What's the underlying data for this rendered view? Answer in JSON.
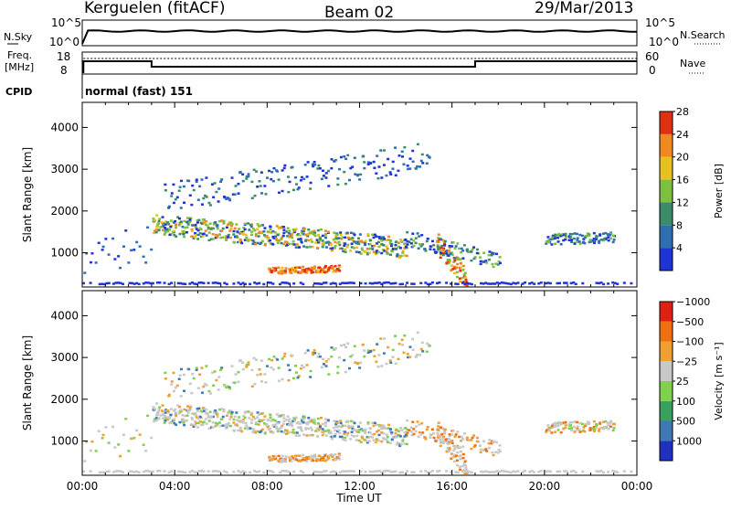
{
  "header": {
    "station": "Kerguelen (fitACF)",
    "beam": "Beam 02",
    "date": "29/Mar/2013"
  },
  "side_labels": {
    "nsky": "N.Sky",
    "nsearch": "N.Search",
    "freq_line1": "Freq.",
    "freq_line2": "[MHz]",
    "nave": "Nave",
    "cpid": "CPID",
    "cpid_value": "normal (fast) 151"
  },
  "strip_ticks": {
    "noise_left": [
      "10^5",
      "10^0"
    ],
    "noise_right": [
      "10^5",
      "10^0"
    ],
    "freq_left": [
      "18",
      "8"
    ],
    "freq_right": [
      "60",
      "0"
    ]
  },
  "chart_data": [
    {
      "type": "heatmap",
      "name": "power-panel",
      "ylabel": "Slant Range [km]",
      "xlabel": "Time UT",
      "x_ticks": [
        "00:00",
        "04:00",
        "08:00",
        "12:00",
        "16:00",
        "20:00",
        "00:00"
      ],
      "y_ticks": [
        1000,
        2000,
        3000,
        4000
      ],
      "ylim": [
        180,
        4600
      ],
      "xlim_hours": [
        0,
        24
      ],
      "colorbar": {
        "label": "Power [dB]",
        "ticks": [
          "4",
          "8",
          "12",
          "16",
          "20",
          "24",
          "28"
        ],
        "colors": [
          "#1f33d6",
          "#2e6fb0",
          "#3c8c6a",
          "#7fbf3f",
          "#e8c020",
          "#f08a20",
          "#e03010"
        ]
      },
      "features": [
        {
          "desc": "main echo band",
          "t_start": 3.0,
          "t_end": 14.0,
          "range_km": [
            1650,
            1100
          ]
        },
        {
          "desc": "high-range scatter",
          "t_start": 3.0,
          "t_end": 15.0,
          "range_km": [
            2600,
            3200
          ]
        },
        {
          "desc": "near-range strong echoes",
          "t_start": 8.0,
          "t_end": 11.0,
          "range_km": [
            500,
            700
          ]
        },
        {
          "desc": "post-16UT strong echoes",
          "t_start": 15.5,
          "t_end": 16.5,
          "range_km": [
            300,
            1200
          ]
        },
        {
          "desc": "evening band",
          "t_start": 20.0,
          "t_end": 23.0,
          "range_km": [
            1200,
            1500
          ]
        }
      ]
    },
    {
      "type": "heatmap",
      "name": "velocity-panel",
      "ylabel": "Slant Range [km]",
      "xlabel": "Time UT",
      "x_ticks": [
        "00:00",
        "04:00",
        "08:00",
        "12:00",
        "16:00",
        "20:00",
        "00:00"
      ],
      "y_ticks": [
        1000,
        2000,
        3000,
        4000
      ],
      "ylim": [
        180,
        4600
      ],
      "xlim_hours": [
        0,
        24
      ],
      "colorbar": {
        "label": "Velocity [m s⁻¹]",
        "ticks": [
          "1000",
          "500",
          "100",
          "25",
          "−25",
          "−100",
          "−500",
          "−1000"
        ],
        "colors": [
          "#2030c0",
          "#3f79b5",
          "#3aa060",
          "#7fd04f",
          "#c8c8c8",
          "#f0a030",
          "#f07010",
          "#e02010"
        ]
      }
    }
  ]
}
